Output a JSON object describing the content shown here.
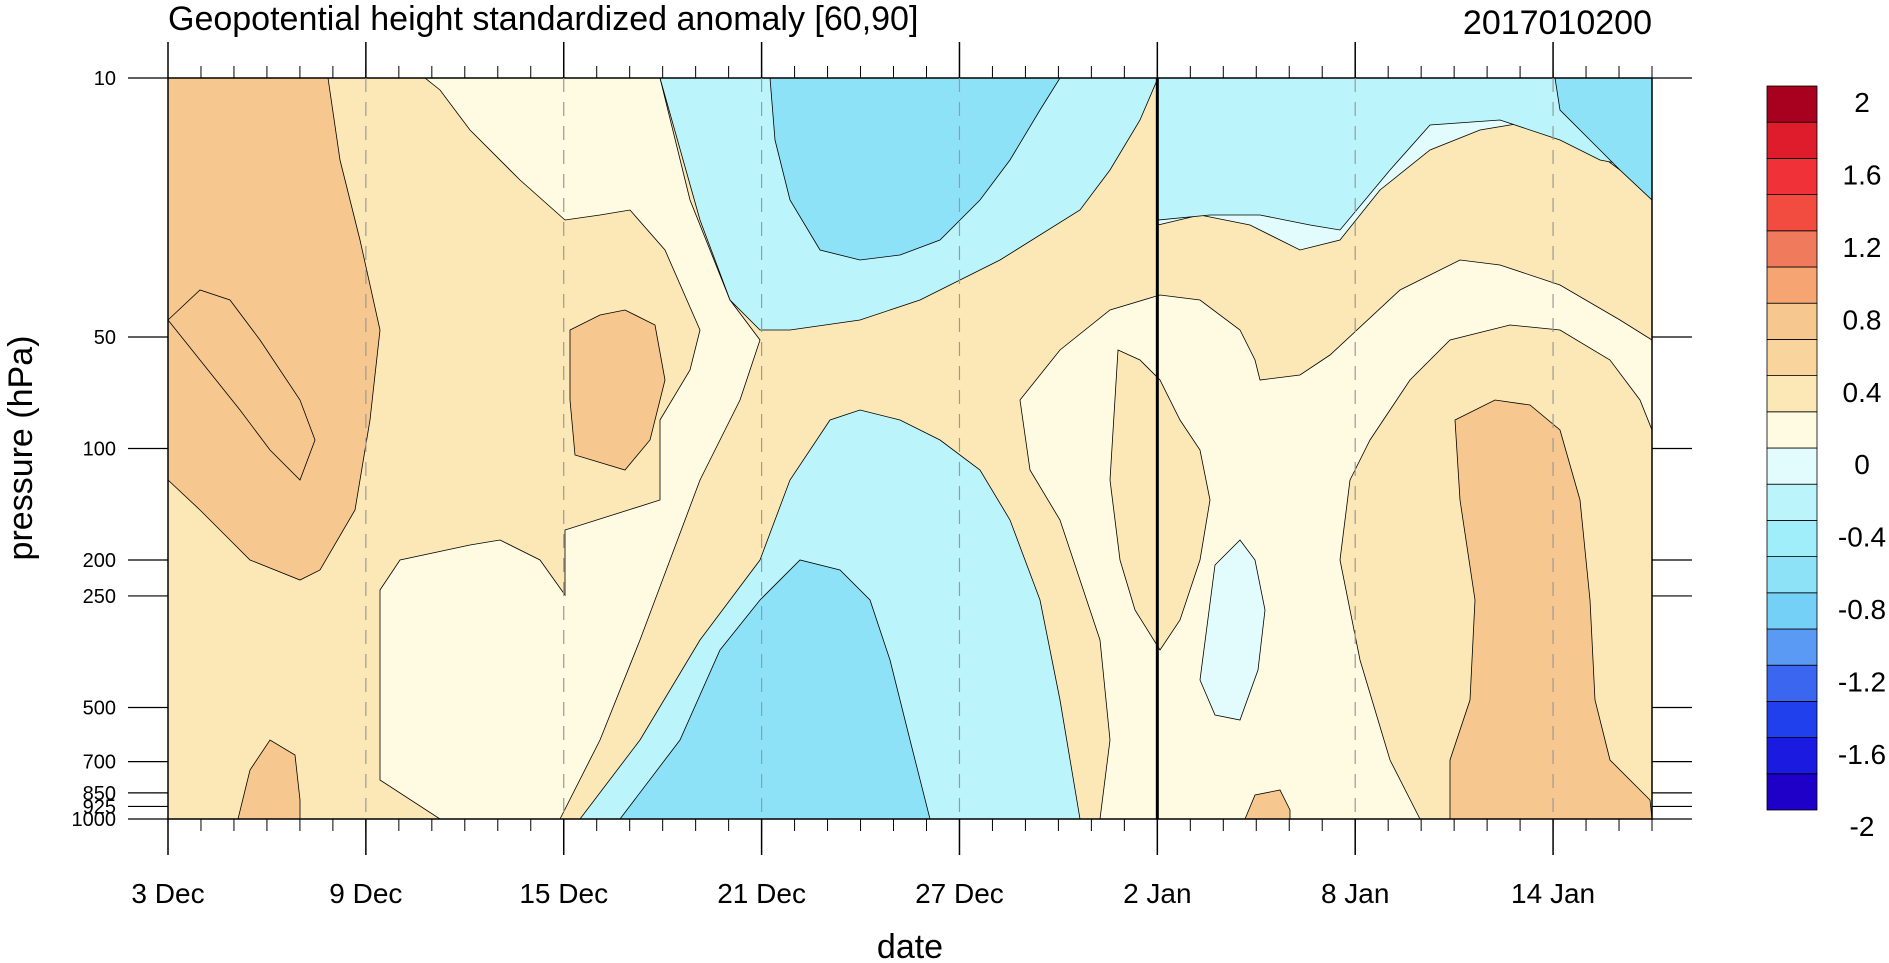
{
  "chart_data": {
    "type": "heatmap",
    "title": "Geopotential height standardized anomaly [60,90]",
    "date_stamp": "2017010200",
    "xlabel": "date",
    "ylabel": "pressure (hPa)",
    "x_ticks": [
      "3 Dec",
      "9 Dec",
      "15 Dec",
      "21 Dec",
      "27 Dec",
      "2 Jan",
      "8 Jan",
      "14 Jan"
    ],
    "x_range": [
      "3 Dec",
      "17 Jan"
    ],
    "y_ticks": [
      10,
      50,
      100,
      200,
      250,
      500,
      700,
      850,
      925,
      1000
    ],
    "y_tick_labels": [
      "10",
      "50",
      "100",
      "200",
      "250",
      "500",
      "700",
      "850",
      "925",
      "1000"
    ],
    "y_scale": "log",
    "y_range": [
      1000,
      10
    ],
    "grid": "dashed vertical lines at labelled dates",
    "marker_date": "2 Jan",
    "colorbar": {
      "levels": [
        -2,
        -1.8,
        -1.6,
        -1.4,
        -1.2,
        -1.0,
        -0.8,
        -0.6,
        -0.4,
        -0.2,
        0,
        0.2,
        0.4,
        0.6,
        0.8,
        1.0,
        1.2,
        1.4,
        1.6,
        1.8,
        2
      ],
      "labels": [
        "2",
        "1.6",
        "1.2",
        "0.8",
        "0.4",
        "0",
        "-0.4",
        "-0.8",
        "-1.2",
        "-1.6",
        "-2"
      ],
      "colors": [
        "#1f00c8",
        "#1a1ae0",
        "#2040ee",
        "#3a66f0",
        "#5a9af5",
        "#74d0f7",
        "#8ee2f7",
        "#9feef9",
        "#bbf5fb",
        "#e2fcfd",
        "#fffbe3",
        "#fbe8b6",
        "#f9d49c",
        "#f6c78f",
        "#f5a472",
        "#f07a5c",
        "#f24b40",
        "#f03238",
        "#de1c2c",
        "#a8001f"
      ]
    },
    "regions_description_free": true
  }
}
